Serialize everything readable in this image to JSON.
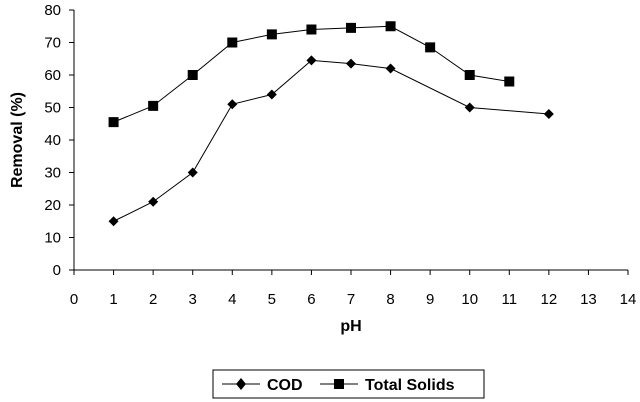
{
  "chart_data": {
    "type": "line",
    "xlabel": "pH",
    "ylabel": "Removal (%)",
    "xlim": [
      0,
      14
    ],
    "ylim": [
      0,
      80
    ],
    "xticks": [
      "0",
      "1",
      "2",
      "3",
      "4",
      "5",
      "6",
      "7",
      "8",
      "9",
      "10",
      "11",
      "12",
      "13",
      "14"
    ],
    "yticks": [
      "0",
      "10",
      "20",
      "30",
      "40",
      "50",
      "60",
      "70",
      "80"
    ],
    "grid": false,
    "legend_position": "bottom",
    "series": [
      {
        "name": "COD",
        "marker": "diamond",
        "color": "#000000",
        "x": [
          1,
          2,
          3,
          4,
          5,
          6,
          7,
          8,
          10,
          12
        ],
        "y": [
          15,
          21,
          30,
          51,
          54,
          64.5,
          63.5,
          62,
          50,
          48
        ]
      },
      {
        "name": "Total Solids",
        "marker": "square",
        "color": "#000000",
        "x": [
          1,
          2,
          3,
          4,
          5,
          6,
          7,
          8,
          9,
          10,
          11
        ],
        "y": [
          45.5,
          50.5,
          60,
          70,
          72.5,
          74,
          74.5,
          75,
          68.5,
          60,
          58
        ]
      }
    ]
  }
}
